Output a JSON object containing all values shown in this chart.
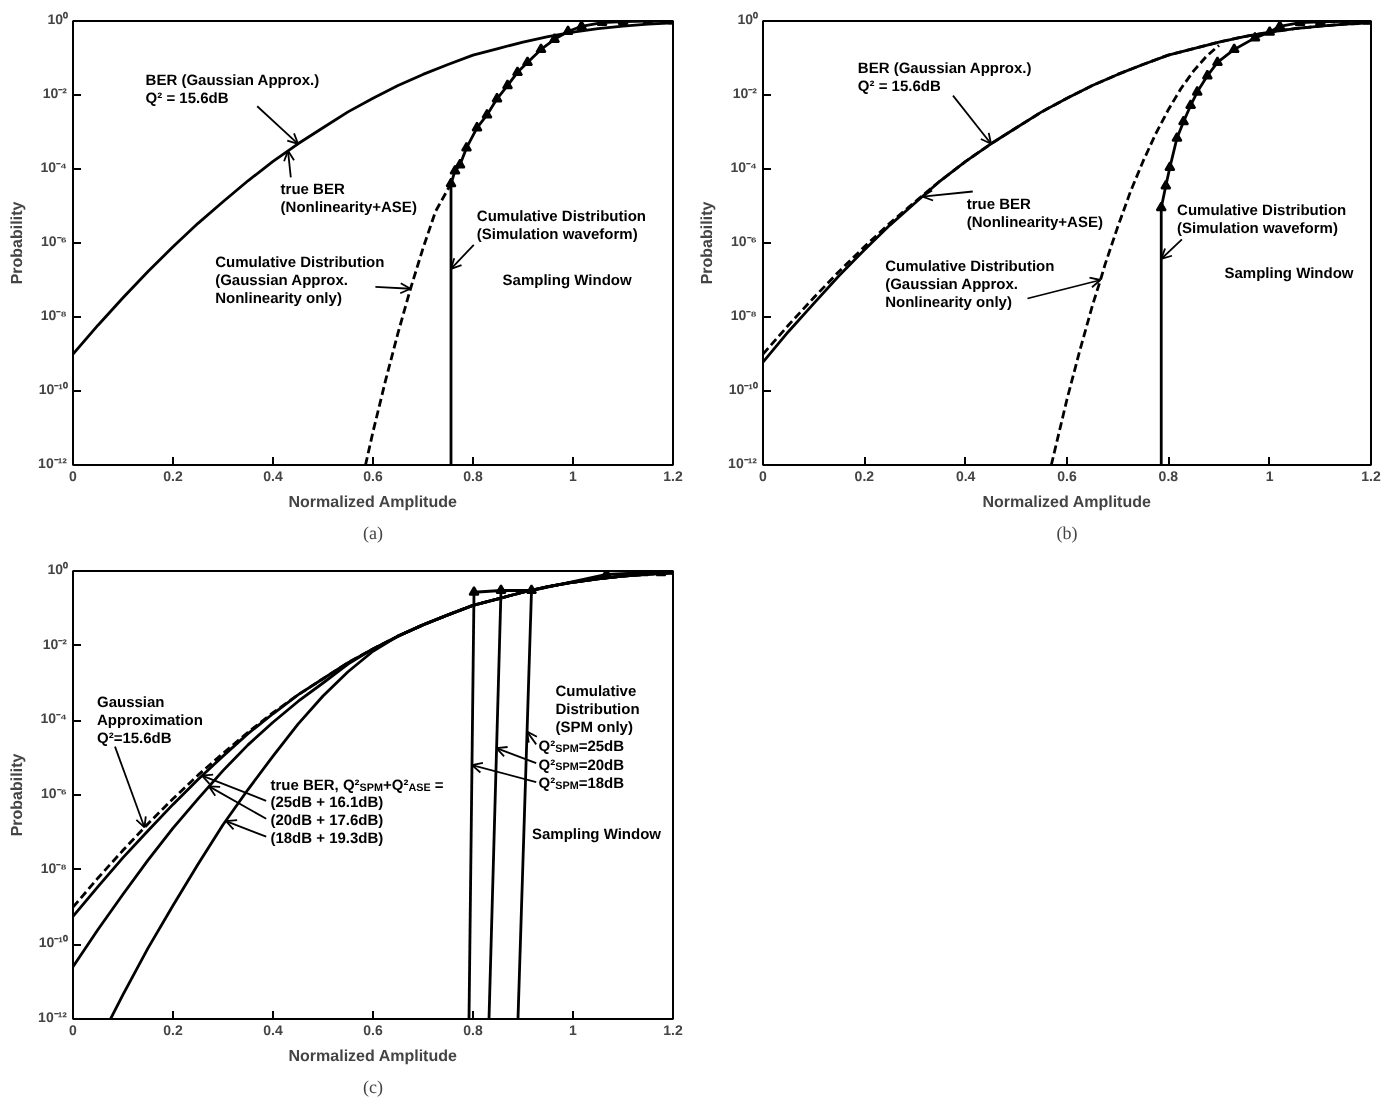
{
  "chart_data": [
    {
      "type": "line",
      "title": "(a)",
      "xlabel": "Normalized Amplitude",
      "ylabel": "Probability",
      "log": "y",
      "xlim": [
        0,
        1.2
      ],
      "ylim": [
        1e-12,
        1
      ],
      "xticks": [
        0,
        0.2,
        0.4,
        0.6,
        0.8,
        1,
        1.2
      ],
      "yticks": [
        {
          "value": 1e-12,
          "label": "10⁻¹²"
        },
        {
          "value": 1e-10,
          "label": "10⁻¹⁰"
        },
        {
          "value": 1e-08,
          "label": "10⁻⁸"
        },
        {
          "value": 1e-06,
          "label": "10⁻⁶"
        },
        {
          "value": 0.0001,
          "label": "10⁻⁴"
        },
        {
          "value": 0.01,
          "label": "10⁻²"
        },
        {
          "value": 1,
          "label": "10⁰"
        }
      ],
      "series": [
        {
          "color": "#000000",
          "line_style": "solid",
          "x": [
            0,
            0.05,
            0.1,
            0.15,
            0.2,
            0.25,
            0.3,
            0.35,
            0.4,
            0.45,
            0.5,
            0.55,
            0.6,
            0.65,
            0.7,
            0.75,
            0.8,
            0.85,
            0.9,
            0.95,
            1,
            1.05,
            1.1,
            1.15,
            1.2
          ],
          "values": [
            9.9e-10,
            6e-09,
            3.3e-08,
            1.7e-07,
            7.9e-07,
            3.4e-06,
            1.3e-05,
            4.8e-05,
            0.00016,
            0.00048,
            0.0013,
            0.0035,
            0.0082,
            0.018,
            0.036,
            0.067,
            0.12,
            0.18,
            0.27,
            0.38,
            0.5,
            0.62,
            0.73,
            0.82,
            0.89
          ]
        },
        {
          "color": "#000000",
          "line_style": "dashed",
          "x": [
            0.585,
            0.6,
            0.625,
            0.65,
            0.675,
            0.7,
            0.725,
            0.756
          ],
          "values": [
            1e-12,
            7.9e-12,
            1.9e-10,
            3.7e-09,
            5.8e-08,
            7.2e-07,
            7.1e-06,
            4e-05
          ]
        },
        {
          "color": "#000000",
          "line_style": "solid",
          "x": [
            0.756,
            0.756
          ],
          "values": [
            1e-12,
            4e-05
          ]
        },
        {
          "color": "#000000",
          "line_style": "solid",
          "marker": "triangle",
          "x": [
            0.756,
            0.764,
            0.774,
            0.787,
            0.808,
            0.828,
            0.848,
            0.869,
            0.889,
            0.909,
            0.936,
            0.963,
            0.99,
            1.017,
            1.058,
            1.1,
            1.15,
            1.2
          ],
          "values": [
            4e-05,
            8.9e-05,
            0.00013,
            0.00037,
            0.0013,
            0.0029,
            0.0079,
            0.018,
            0.041,
            0.076,
            0.17,
            0.32,
            0.52,
            0.72,
            0.91,
            0.97,
            0.99,
            1
          ]
        }
      ],
      "annotations": [
        {
          "text": "BER (Gaussian Approx.)\nQ² = 15.6dB",
          "x": 0.45,
          "y": 0.00048
        },
        {
          "text": "true BER\n(Nonlinearity+ASE)",
          "x": 0.43,
          "y": 0.00031
        },
        {
          "text": "Cumulative Distribution\n(Gaussian Approx.\nNonlinearity only)",
          "x": 0.675,
          "y": 5.8e-08
        },
        {
          "text": "Cumulative Distribution\n(Simulation waveform)",
          "x": 0.756,
          "y": 2e-07
        },
        "Sampling Window"
      ]
    },
    {
      "type": "line",
      "title": "(b)",
      "xlabel": "Normalized Amplitude",
      "ylabel": "Probability",
      "log": "y",
      "xlim": [
        0,
        1.2
      ],
      "ylim": [
        1e-12,
        1
      ],
      "xticks": [
        0,
        0.2,
        0.4,
        0.6,
        0.8,
        1,
        1.2
      ],
      "yticks": [
        {
          "value": 1e-12,
          "label": "10⁻¹²"
        },
        {
          "value": 1e-10,
          "label": "10⁻¹⁰"
        },
        {
          "value": 1e-08,
          "label": "10⁻⁸"
        },
        {
          "value": 1e-06,
          "label": "10⁻⁶"
        },
        {
          "value": 0.0001,
          "label": "10⁻⁴"
        },
        {
          "value": 0.01,
          "label": "10⁻²"
        },
        {
          "value": 1,
          "label": "10⁰"
        }
      ],
      "series": [
        {
          "color": "#000000",
          "line_style": "solid",
          "x": [
            0,
            0.05,
            0.1,
            0.15,
            0.2,
            0.25,
            0.3,
            0.35,
            0.4,
            0.45,
            0.5,
            0.55,
            0.6,
            0.65,
            0.7,
            0.75,
            0.8,
            0.85,
            0.9,
            0.95,
            1,
            1.05,
            1.1,
            1.15,
            1.2
          ],
          "values": [
            6e-10,
            4e-09,
            2.3e-08,
            1.3e-07,
            6.5e-07,
            3e-06,
            1.2e-05,
            4.8e-05,
            0.00016,
            0.00048,
            0.0013,
            0.0035,
            0.0082,
            0.018,
            0.036,
            0.067,
            0.12,
            0.18,
            0.27,
            0.38,
            0.5,
            0.62,
            0.73,
            0.82,
            0.89
          ]
        },
        {
          "color": "#000000",
          "line_style": "dashed",
          "x": [
            0,
            0.05,
            0.1,
            0.15,
            0.2,
            0.25,
            0.3,
            0.35,
            0.4,
            0.45,
            0.5,
            0.55,
            0.6,
            0.65,
            0.7,
            0.75,
            0.8,
            0.85,
            0.9,
            0.95,
            1,
            1.05,
            1.1,
            1.15,
            1.2
          ],
          "values": [
            9.9e-10,
            6e-09,
            3.3e-08,
            1.7e-07,
            7.9e-07,
            3.4e-06,
            1.3e-05,
            4.8e-05,
            0.00016,
            0.00048,
            0.0013,
            0.0035,
            0.0082,
            0.018,
            0.036,
            0.067,
            0.12,
            0.18,
            0.27,
            0.38,
            0.5,
            0.62,
            0.73,
            0.82,
            0.89
          ]
        },
        {
          "color": "#000000",
          "line_style": "dashed",
          "x": [
            0.569,
            0.6,
            0.625,
            0.65,
            0.666,
            0.675,
            0.7,
            0.725,
            0.75,
            0.775,
            0.8,
            0.825,
            0.85,
            0.875,
            0.9
          ],
          "values": [
            1e-12,
            6e-11,
            1.2e-09,
            2e-08,
            1e-07,
            2.6e-07,
            2.7e-06,
            2.4e-05,
            0.00016,
            0.00089,
            0.004,
            0.015,
            0.045,
            0.11,
            0.22
          ]
        },
        {
          "color": "#000000",
          "line_style": "solid",
          "x": [
            0.786,
            0.786
          ],
          "values": [
            1e-12,
            9e-06
          ]
        },
        {
          "color": "#000000",
          "line_style": "solid",
          "marker": "triangle",
          "x": [
            0.786,
            0.795,
            0.803,
            0.817,
            0.83,
            0.844,
            0.857,
            0.877,
            0.897,
            0.93,
            0.971,
            1.0,
            1.02,
            1.06,
            1.1,
            1.15,
            1.2
          ],
          "values": [
            9e-06,
            3.5e-05,
            0.00011,
            0.00068,
            0.0019,
            0.0052,
            0.012,
            0.033,
            0.076,
            0.17,
            0.35,
            0.5,
            0.72,
            0.9,
            0.95,
            0.98,
            1
          ]
        }
      ],
      "annotations": [
        {
          "text": "BER (Gaussian Approx.)\nQ² = 15.6dB",
          "x": 0.45,
          "y": 0.00048
        },
        {
          "text": "true BER\n(Nonlinearity+ASE)",
          "x": 0.315,
          "y": 1.8e-05
        },
        {
          "text": "Cumulative Distribution\n(Gaussian Approx.\nNonlinearity only)",
          "x": 0.666,
          "y": 1e-07
        },
        {
          "text": "Cumulative Distribution\n(Simulation waveform)",
          "x": 0.786,
          "y": 3.7e-07
        },
        "Sampling Window"
      ]
    },
    {
      "type": "line",
      "title": "(c)",
      "xlabel": "Normalized Amplitude",
      "ylabel": "Probability",
      "log": "y",
      "xlim": [
        0,
        1.2
      ],
      "ylim": [
        1e-12,
        1
      ],
      "xticks": [
        0,
        0.2,
        0.4,
        0.6,
        0.8,
        1,
        1.2
      ],
      "yticks": [
        {
          "value": 1e-12,
          "label": "10⁻¹²"
        },
        {
          "value": 1e-10,
          "label": "10⁻¹⁰"
        },
        {
          "value": 1e-08,
          "label": "10⁻⁸"
        },
        {
          "value": 1e-06,
          "label": "10⁻⁶"
        },
        {
          "value": 0.0001,
          "label": "10⁻⁴"
        },
        {
          "value": 0.01,
          "label": "10⁻²"
        },
        {
          "value": 1,
          "label": "10⁰"
        }
      ],
      "series": [
        {
          "color": "#000000",
          "line_style": "solid",
          "x": [
            0.075,
            0.1,
            0.15,
            0.2,
            0.25,
            0.3,
            0.35,
            0.4,
            0.45,
            0.5,
            0.55,
            0.6,
            0.65,
            0.7,
            0.75,
            0.8,
            0.85,
            0.9,
            0.95,
            1,
            1.05,
            1.1,
            1.15,
            1.2
          ],
          "values": [
            1e-12,
            4.5e-12,
            7.9e-11,
            1.1e-09,
            1.4e-08,
            1.6e-07,
            1.4e-06,
            1.1e-05,
            7.9e-05,
            0.00045,
            0.002,
            0.0071,
            0.018,
            0.036,
            0.067,
            0.12,
            0.18,
            0.27,
            0.38,
            0.5,
            0.62,
            0.73,
            0.82,
            0.89
          ]
        },
        {
          "color": "#000000",
          "line_style": "solid",
          "x": [
            0,
            0.05,
            0.1,
            0.15,
            0.2,
            0.25,
            0.3,
            0.35,
            0.4,
            0.45,
            0.5,
            0.55,
            0.6,
            0.65,
            0.7,
            0.75,
            0.8,
            0.85,
            0.9,
            0.95,
            1,
            1.05,
            1.1,
            1.15,
            1.2
          ],
          "values": [
            2.5e-11,
            2.5e-10,
            2.2e-09,
            1.8e-08,
            1.3e-07,
            7.9e-07,
            4.5e-06,
            2.2e-05,
            8.9e-05,
            0.00032,
            0.001,
            0.0032,
            0.0082,
            0.018,
            0.036,
            0.067,
            0.12,
            0.18,
            0.27,
            0.38,
            0.5,
            0.62,
            0.73,
            0.82,
            0.89
          ]
        },
        {
          "color": "#000000",
          "line_style": "solid",
          "x": [
            0,
            0.05,
            0.1,
            0.15,
            0.2,
            0.25,
            0.3,
            0.35,
            0.4,
            0.45,
            0.5,
            0.55,
            0.6,
            0.65,
            0.7,
            0.75,
            0.8,
            0.85,
            0.9,
            0.95,
            1,
            1.05,
            1.1,
            1.15,
            1.2
          ],
          "values": [
            5.6e-10,
            3.5e-09,
            2.1e-08,
            1.1e-07,
            5.6e-07,
            2.6e-06,
            1.1e-05,
            4.4e-05,
            0.00015,
            0.00048,
            0.0013,
            0.0035,
            0.0082,
            0.018,
            0.036,
            0.067,
            0.12,
            0.18,
            0.27,
            0.38,
            0.5,
            0.62,
            0.73,
            0.82,
            0.89
          ]
        },
        {
          "color": "#000000",
          "line_style": "dashed",
          "x": [
            0,
            0.05,
            0.1,
            0.15,
            0.2,
            0.25,
            0.3,
            0.35,
            0.4,
            0.45,
            0.5,
            0.55,
            0.6,
            0.65,
            0.7,
            0.75,
            0.8,
            0.85,
            0.9,
            0.95,
            1,
            1.05,
            1.1,
            1.15,
            1.2
          ],
          "values": [
            9.9e-10,
            6e-09,
            3.3e-08,
            1.7e-07,
            7.9e-07,
            3.4e-06,
            1.3e-05,
            4.8e-05,
            0.00016,
            0.00048,
            0.0013,
            0.0035,
            0.0082,
            0.018,
            0.036,
            0.067,
            0.12,
            0.18,
            0.27,
            0.38,
            0.5,
            0.62,
            0.73,
            0.82,
            0.89
          ]
        },
        {
          "color": "#000000",
          "line_style": "solid",
          "x": [
            0.792,
            0.802
          ],
          "values": [
            1e-12,
            0.27
          ]
        },
        {
          "color": "#000000",
          "line_style": "solid",
          "x": [
            0.832,
            0.856
          ],
          "values": [
            1e-12,
            0.3
          ]
        },
        {
          "color": "#000000",
          "line_style": "solid",
          "x": [
            0.89,
            0.917
          ],
          "values": [
            1e-12,
            0.3
          ]
        },
        {
          "color": "#000000",
          "line_style": "solid",
          "marker": "triangle",
          "x": [
            0.802,
            0.856,
            0.917,
            1.067,
            1.141,
            1.176
          ],
          "values": [
            0.27,
            0.3,
            0.3,
            0.81,
            0.91,
            0.91
          ]
        }
      ],
      "annotations": [
        {
          "text": "Gaussian\nApproximation\nQ²=15.6dB",
          "x": 0.143,
          "y": 1.35e-07
        },
        "true BER, Q²$_{SPM}$+Q²$_{ASE}$ =",
        {
          "text": "(25dB + 16.1dB)",
          "x": 0.258,
          "y": 3.3e-06
        },
        {
          "text": "(20dB + 17.6dB)",
          "x": 0.272,
          "y": 1.7e-06
        },
        {
          "text": "(18dB + 19.3dB)",
          "x": 0.306,
          "y": 2e-07
        },
        "Cumulative\nDistribution\n(SPM only)",
        {
          "text": "Q²$_{SPM}$=25dB",
          "x": 0.908,
          "y": 5e-05
        },
        {
          "text": "Q²$_{SPM}$=20dB",
          "x": 0.847,
          "y": 1.8e-05
        },
        {
          "text": "Q²$_{SPM}$=18dB",
          "x": 0.798,
          "y": 6.3e-06
        },
        "Sampling Window"
      ]
    }
  ]
}
